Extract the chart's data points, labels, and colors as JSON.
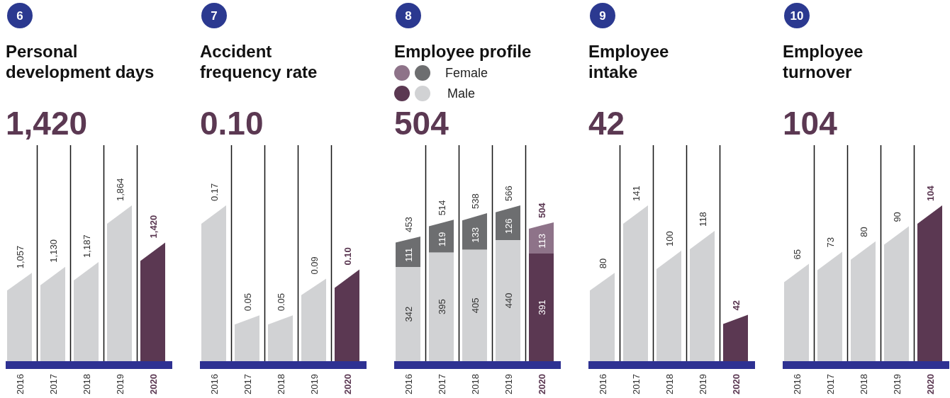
{
  "chart_data": [
    {
      "type": "bar",
      "title": "Personal\ndevelopment days",
      "subtitle": "1,420",
      "annotations": [
        "6"
      ],
      "categories": [
        "2016",
        "2017",
        "2018",
        "2019",
        "2020"
      ],
      "values": [
        1057,
        1130,
        1187,
        1864,
        1420
      ],
      "value_labels": [
        "1,057",
        "1,130",
        "1,187",
        "1,864",
        "1,420"
      ],
      "colors": [
        "#d1d2d4",
        "#d1d2d4",
        "#d1d2d4",
        "#d1d2d4",
        "#5b3852"
      ],
      "grid": "x"
    },
    {
      "type": "bar",
      "title": "Accident\nfrequency rate",
      "subtitle": "0.10",
      "annotations": [
        "7"
      ],
      "categories": [
        "2016",
        "2017",
        "2018",
        "2019",
        "2020"
      ],
      "values": [
        0.17,
        0.05,
        0.05,
        0.09,
        0.1
      ],
      "value_labels": [
        "0.17",
        "0.05",
        "0.05",
        "0.09",
        "0.10"
      ],
      "colors": [
        "#d1d2d4",
        "#d1d2d4",
        "#d1d2d4",
        "#d1d2d4",
        "#5b3852"
      ],
      "grid": "x"
    },
    {
      "type": "bar",
      "title": "Employee profile",
      "subtitle": "504",
      "annotations": [
        "8"
      ],
      "categories": [
        "2016",
        "2017",
        "2018",
        "2019",
        "2020"
      ],
      "stacked": true,
      "legend": "top left",
      "data_labels": true,
      "totals": [
        "453",
        "514",
        "538",
        "566",
        "504"
      ],
      "grid": "x",
      "series": [
        {
          "name": "Male",
          "values": [
            342,
            395,
            405,
            440,
            391
          ],
          "colors": [
            "#d1d2d4",
            "#d1d2d4",
            "#d1d2d4",
            "#d1d2d4",
            "#5b3852"
          ]
        },
        {
          "name": "Female",
          "values": [
            111,
            119,
            133,
            126,
            113
          ],
          "colors": [
            "#6d6e70",
            "#6d6e70",
            "#6d6e70",
            "#6d6e70",
            "#8e7389"
          ]
        }
      ]
    },
    {
      "type": "bar",
      "title": "Employee\nintake",
      "subtitle": "42",
      "annotations": [
        "9"
      ],
      "categories": [
        "2016",
        "2017",
        "2018",
        "2019",
        "2020"
      ],
      "values": [
        80,
        141,
        100,
        118,
        42
      ],
      "value_labels": [
        "80",
        "141",
        "100",
        "118",
        "42"
      ],
      "colors": [
        "#d1d2d4",
        "#d1d2d4",
        "#d1d2d4",
        "#d1d2d4",
        "#5b3852"
      ],
      "grid": "x"
    },
    {
      "type": "bar",
      "title": "Employee\nturnover",
      "subtitle": "104",
      "annotations": [
        "10"
      ],
      "categories": [
        "2016",
        "2017",
        "2018",
        "2019",
        "2020"
      ],
      "values": [
        65,
        73,
        80,
        90,
        104
      ],
      "value_labels": [
        "65",
        "73",
        "80",
        "90",
        "104"
      ],
      "colors": [
        "#d1d2d4",
        "#d1d2d4",
        "#d1d2d4",
        "#d1d2d4",
        "#5b3852"
      ],
      "grid": "x"
    }
  ]
}
